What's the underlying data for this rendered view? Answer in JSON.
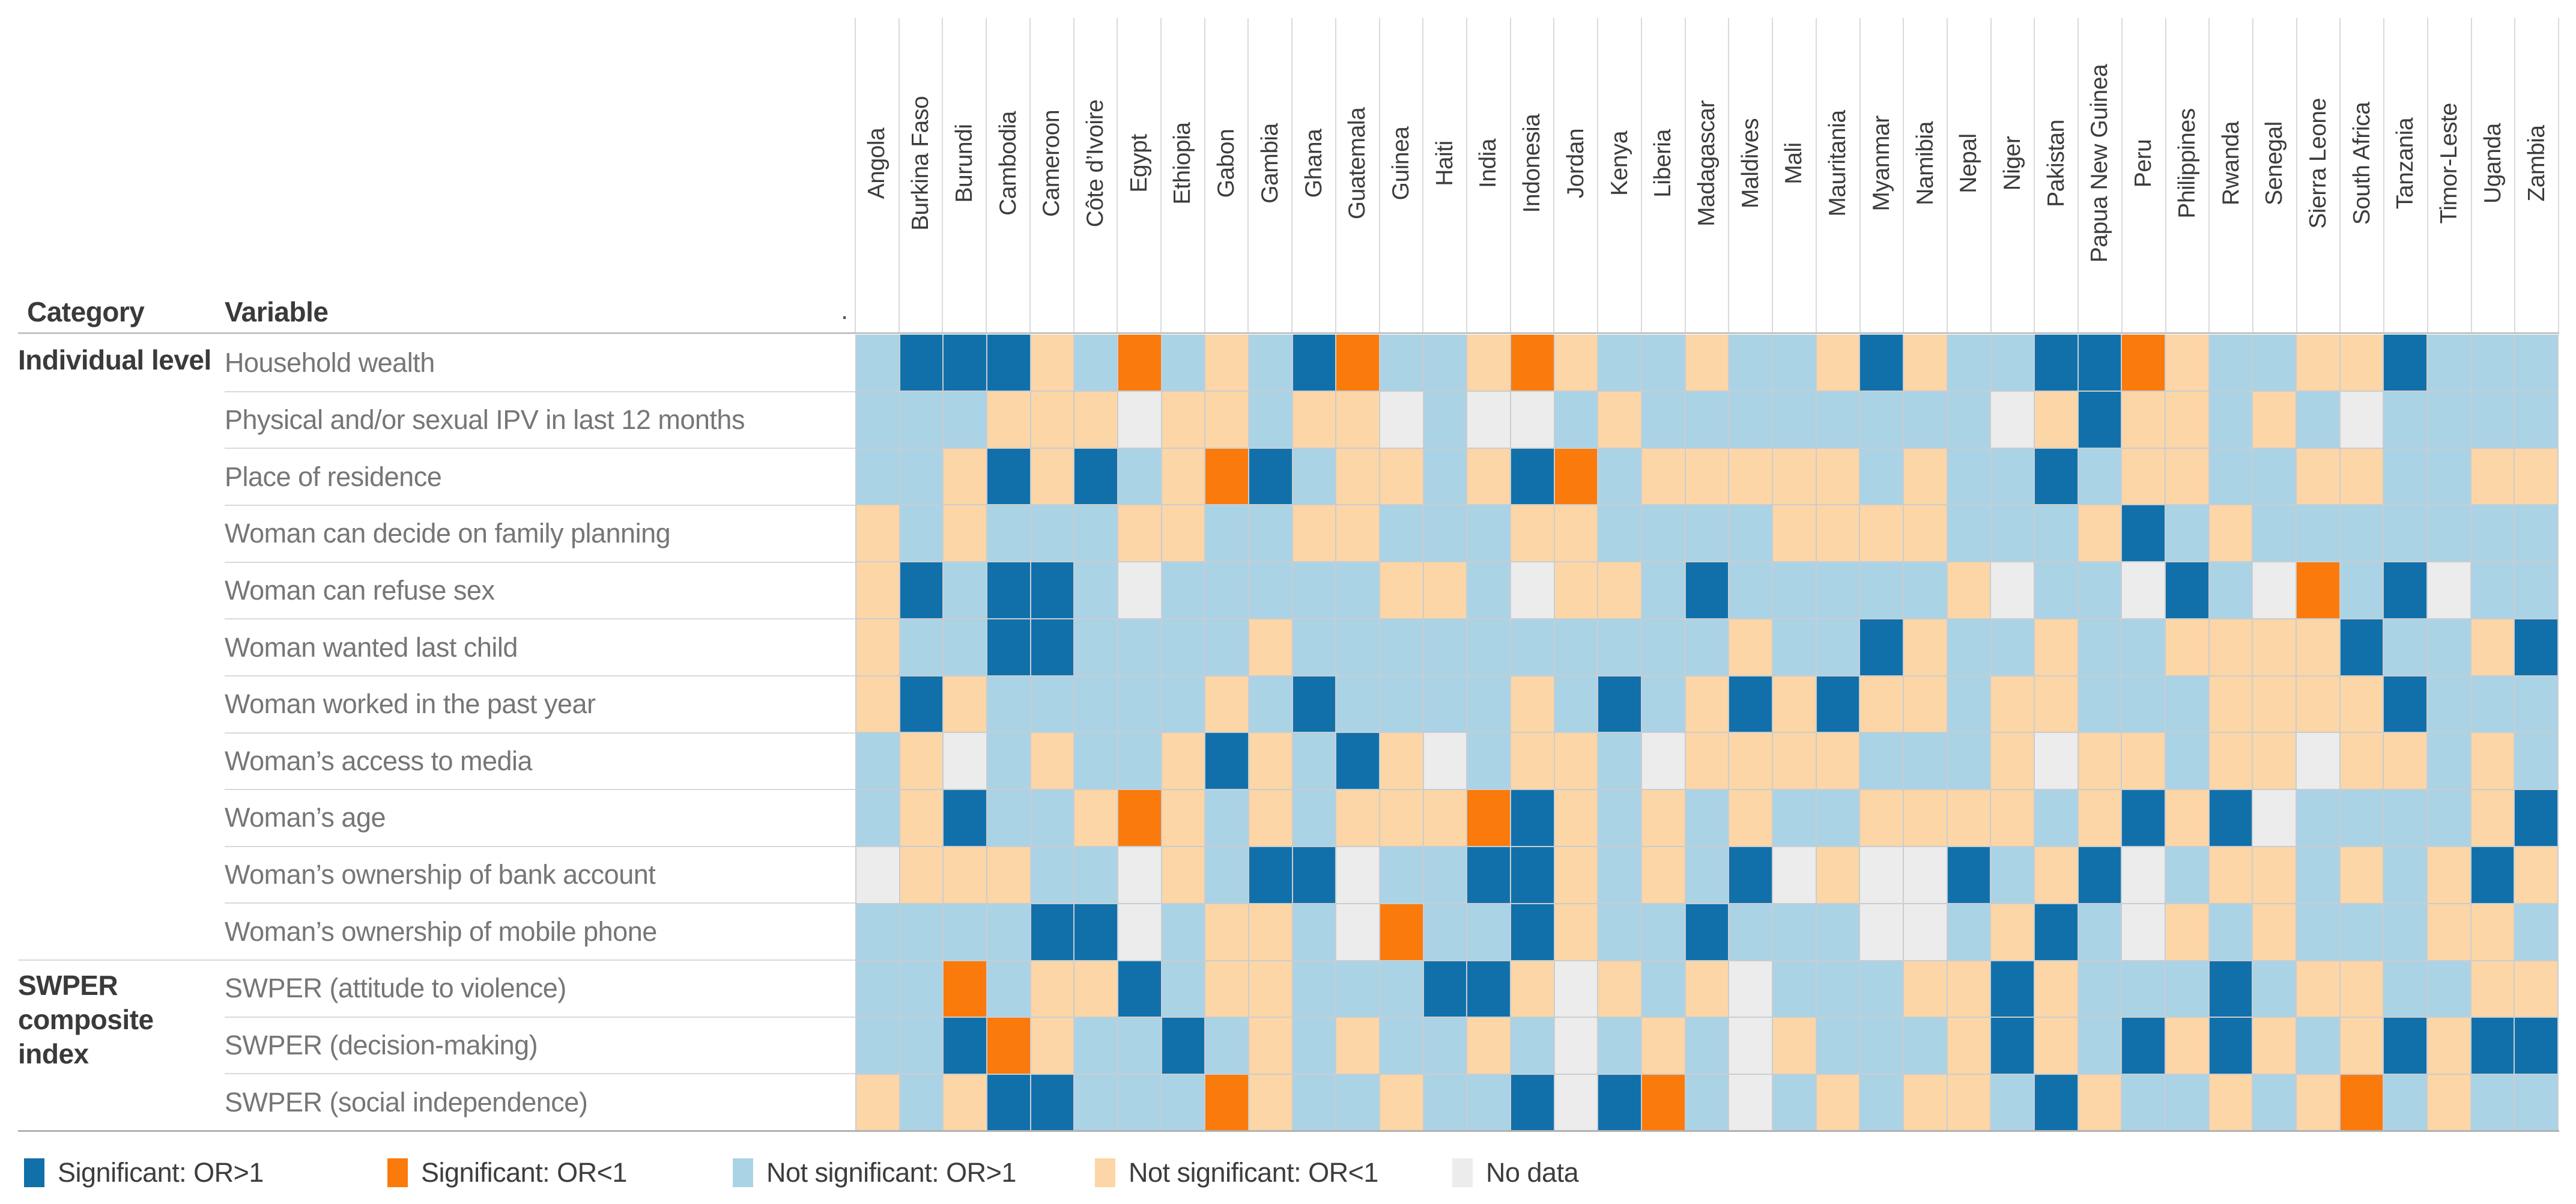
{
  "header": {
    "category": "Category",
    "variable": "Variable",
    "sort_indicator": "."
  },
  "legend": {
    "items": [
      {
        "code": "B",
        "label": "Significant: OR>1",
        "color": "#1170aa"
      },
      {
        "code": "O",
        "label": "Significant: OR<1",
        "color": "#fb7a0c"
      },
      {
        "code": "b",
        "label": "Not significant: OR>1",
        "color": "#abd3e6"
      },
      {
        "code": "o",
        "label": "Not significant: OR<1",
        "color": "#fcd6a6"
      },
      {
        "code": "g",
        "label": "No data",
        "color": "#ececec"
      }
    ]
  },
  "chart_data": {
    "type": "heatmap",
    "legend_position": "bottom",
    "x_categories": [
      "Angola",
      "Burkina Faso",
      "Burundi",
      "Cambodia",
      "Cameroon",
      "Côte d’Ivoire",
      "Egypt",
      "Ethiopia",
      "Gabon",
      "Gambia",
      "Ghana",
      "Guatemala",
      "Guinea",
      "Haiti",
      "India",
      "Indonesia",
      "Jordan",
      "Kenya",
      "Liberia",
      "Madagascar",
      "Maldives",
      "Mali",
      "Mauritania",
      "Myanmar",
      "Namibia",
      "Nepal",
      "Niger",
      "Pakistan",
      "Papua New Guinea",
      "Peru",
      "Philippines",
      "Rwanda",
      "Senegal",
      "Sierra Leone",
      "South Africa",
      "Tanzania",
      "Timor-Leste",
      "Uganda",
      "Zambia"
    ],
    "row_groups": [
      {
        "name": "Individual level"
      },
      {
        "name": "SWPER composite index"
      }
    ],
    "value_codes": {
      "B": "Significant: OR>1",
      "O": "Significant: OR<1",
      "b": "Not significant: OR>1",
      "o": "Not significant: OR<1",
      "g": "No data"
    },
    "colors": {
      "B": "#1170aa",
      "O": "#fb7a0c",
      "b": "#abd3e6",
      "o": "#fcd6a6",
      "g": "#ececec"
    },
    "rows": [
      {
        "category": "Individual level",
        "variable": "Household wealth",
        "values": [
          "b",
          "B",
          "B",
          "B",
          "o",
          "b",
          "O",
          "b",
          "o",
          "b",
          "B",
          "O",
          "b",
          "b",
          "o",
          "O",
          "o",
          "b",
          "b",
          "o",
          "b",
          "b",
          "o",
          "B",
          "o",
          "b",
          "b",
          "B",
          "B",
          "O",
          "o",
          "b",
          "b",
          "o",
          "o",
          "B",
          "b",
          "b",
          "b"
        ]
      },
      {
        "category": "Individual level",
        "variable": "Physical and/or sexual IPV in last 12 months",
        "values": [
          "b",
          "b",
          "b",
          "o",
          "o",
          "o",
          "g",
          "o",
          "o",
          "b",
          "o",
          "o",
          "g",
          "b",
          "g",
          "g",
          "b",
          "o",
          "b",
          "b",
          "b",
          "b",
          "b",
          "b",
          "b",
          "b",
          "g",
          "o",
          "B",
          "o",
          "o",
          "b",
          "o",
          "b",
          "g",
          "b",
          "b",
          "b",
          "b"
        ]
      },
      {
        "category": "Individual level",
        "variable": "Place of residence",
        "values": [
          "b",
          "b",
          "o",
          "B",
          "o",
          "B",
          "b",
          "o",
          "O",
          "B",
          "b",
          "o",
          "o",
          "b",
          "o",
          "B",
          "O",
          "b",
          "o",
          "o",
          "o",
          "o",
          "o",
          "b",
          "o",
          "b",
          "b",
          "B",
          "b",
          "o",
          "o",
          "b",
          "b",
          "o",
          "o",
          "b",
          "b",
          "o",
          "o"
        ]
      },
      {
        "category": "Individual level",
        "variable": "Woman can decide on family planning",
        "values": [
          "o",
          "b",
          "o",
          "b",
          "b",
          "b",
          "o",
          "o",
          "b",
          "b",
          "o",
          "o",
          "b",
          "b",
          "b",
          "o",
          "o",
          "b",
          "b",
          "b",
          "b",
          "o",
          "o",
          "o",
          "o",
          "b",
          "b",
          "b",
          "o",
          "B",
          "b",
          "o",
          "b",
          "b",
          "b",
          "b",
          "b",
          "b",
          "b"
        ]
      },
      {
        "category": "Individual level",
        "variable": "Woman can refuse sex",
        "values": [
          "o",
          "B",
          "b",
          "B",
          "B",
          "b",
          "g",
          "b",
          "b",
          "b",
          "b",
          "b",
          "o",
          "o",
          "b",
          "g",
          "o",
          "o",
          "b",
          "B",
          "b",
          "b",
          "b",
          "b",
          "b",
          "o",
          "g",
          "b",
          "b",
          "g",
          "B",
          "b",
          "g",
          "O",
          "b",
          "B",
          "g",
          "b",
          "b"
        ]
      },
      {
        "category": "Individual level",
        "variable": "Woman wanted last child",
        "values": [
          "o",
          "b",
          "b",
          "B",
          "B",
          "b",
          "b",
          "b",
          "b",
          "o",
          "b",
          "b",
          "b",
          "b",
          "b",
          "b",
          "b",
          "b",
          "b",
          "b",
          "o",
          "b",
          "b",
          "B",
          "o",
          "b",
          "b",
          "o",
          "b",
          "b",
          "o",
          "o",
          "o",
          "o",
          "B",
          "b",
          "b",
          "o",
          "B"
        ]
      },
      {
        "category": "Individual level",
        "variable": "Woman worked in the past year",
        "values": [
          "o",
          "B",
          "o",
          "b",
          "b",
          "b",
          "b",
          "b",
          "o",
          "b",
          "B",
          "b",
          "b",
          "b",
          "b",
          "o",
          "b",
          "B",
          "b",
          "o",
          "B",
          "o",
          "B",
          "o",
          "o",
          "b",
          "o",
          "o",
          "b",
          "b",
          "b",
          "o",
          "o",
          "o",
          "o",
          "B",
          "b",
          "b",
          "b"
        ]
      },
      {
        "category": "Individual level",
        "variable": "Woman’s access to media",
        "values": [
          "b",
          "o",
          "g",
          "b",
          "o",
          "b",
          "b",
          "o",
          "B",
          "o",
          "b",
          "B",
          "o",
          "g",
          "b",
          "o",
          "o",
          "b",
          "g",
          "o",
          "o",
          "o",
          "o",
          "b",
          "b",
          "b",
          "o",
          "g",
          "o",
          "o",
          "b",
          "o",
          "o",
          "g",
          "o",
          "o",
          "b",
          "o",
          "b"
        ]
      },
      {
        "category": "Individual level",
        "variable": "Woman’s age",
        "values": [
          "b",
          "o",
          "B",
          "b",
          "b",
          "o",
          "O",
          "o",
          "b",
          "o",
          "b",
          "o",
          "o",
          "o",
          "O",
          "B",
          "o",
          "b",
          "o",
          "b",
          "o",
          "b",
          "b",
          "o",
          "o",
          "o",
          "o",
          "b",
          "o",
          "B",
          "o",
          "B",
          "g",
          "b",
          "b",
          "b",
          "b",
          "o",
          "B"
        ]
      },
      {
        "category": "Individual level",
        "variable": "Woman’s ownership of bank account",
        "values": [
          "g",
          "o",
          "o",
          "o",
          "b",
          "b",
          "g",
          "o",
          "b",
          "B",
          "B",
          "g",
          "b",
          "b",
          "B",
          "B",
          "o",
          "b",
          "o",
          "b",
          "B",
          "g",
          "o",
          "g",
          "g",
          "B",
          "b",
          "o",
          "B",
          "g",
          "b",
          "o",
          "o",
          "b",
          "o",
          "b",
          "o",
          "B",
          "o"
        ]
      },
      {
        "category": "Individual level",
        "variable": "Woman’s ownership of mobile phone",
        "values": [
          "b",
          "b",
          "b",
          "b",
          "B",
          "B",
          "g",
          "b",
          "o",
          "o",
          "b",
          "g",
          "O",
          "b",
          "b",
          "B",
          "o",
          "b",
          "b",
          "B",
          "b",
          "b",
          "b",
          "g",
          "g",
          "b",
          "o",
          "B",
          "b",
          "g",
          "o",
          "b",
          "o",
          "b",
          "b",
          "b",
          "o",
          "o",
          "b"
        ]
      },
      {
        "category": "SWPER composite index",
        "variable": "SWPER (attitude to violence)",
        "values": [
          "b",
          "b",
          "O",
          "b",
          "o",
          "o",
          "B",
          "b",
          "o",
          "o",
          "b",
          "b",
          "b",
          "B",
          "B",
          "o",
          "g",
          "o",
          "b",
          "o",
          "g",
          "b",
          "b",
          "b",
          "o",
          "o",
          "B",
          "o",
          "b",
          "b",
          "b",
          "B",
          "b",
          "o",
          "o",
          "b",
          "b",
          "o",
          "o"
        ]
      },
      {
        "category": "SWPER composite index",
        "variable": "SWPER (decision-making)",
        "values": [
          "b",
          "b",
          "B",
          "O",
          "o",
          "b",
          "b",
          "B",
          "b",
          "o",
          "b",
          "o",
          "b",
          "b",
          "o",
          "b",
          "g",
          "b",
          "o",
          "b",
          "g",
          "o",
          "b",
          "b",
          "b",
          "o",
          "B",
          "o",
          "b",
          "B",
          "o",
          "B",
          "o",
          "b",
          "o",
          "B",
          "o",
          "B",
          "B"
        ]
      },
      {
        "category": "SWPER composite index",
        "variable": "SWPER (social independence)",
        "values": [
          "o",
          "b",
          "o",
          "B",
          "B",
          "b",
          "b",
          "b",
          "O",
          "o",
          "b",
          "b",
          "o",
          "b",
          "b",
          "B",
          "g",
          "B",
          "O",
          "b",
          "g",
          "b",
          "o",
          "b",
          "o",
          "o",
          "b",
          "B",
          "o",
          "b",
          "b",
          "o",
          "b",
          "o",
          "O",
          "b",
          "o",
          "b",
          "b"
        ]
      }
    ]
  }
}
